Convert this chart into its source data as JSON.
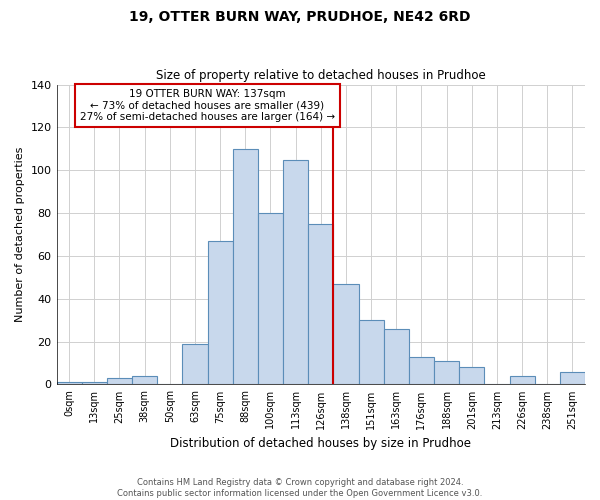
{
  "title": "19, OTTER BURN WAY, PRUDHOE, NE42 6RD",
  "subtitle": "Size of property relative to detached houses in Prudhoe",
  "xlabel": "Distribution of detached houses by size in Prudhoe",
  "ylabel": "Number of detached properties",
  "bin_labels": [
    "0sqm",
    "13sqm",
    "25sqm",
    "38sqm",
    "50sqm",
    "63sqm",
    "75sqm",
    "88sqm",
    "100sqm",
    "113sqm",
    "126sqm",
    "138sqm",
    "151sqm",
    "163sqm",
    "176sqm",
    "188sqm",
    "201sqm",
    "213sqm",
    "226sqm",
    "238sqm",
    "251sqm"
  ],
  "bar_values": [
    1,
    1,
    3,
    4,
    0,
    19,
    67,
    110,
    80,
    105,
    75,
    47,
    30,
    26,
    13,
    11,
    8,
    0,
    4,
    0,
    6
  ],
  "bar_color": "#c8d8ec",
  "bar_edge_color": "#5b8db8",
  "property_line_x": 11,
  "property_line_label": "19 OTTER BURN WAY: 137sqm",
  "annotation_line1": "← 73% of detached houses are smaller (439)",
  "annotation_line2": "27% of semi-detached houses are larger (164) →",
  "annotation_box_color": "#ffffff",
  "annotation_box_edge": "#cc0000",
  "vline_color": "#cc0000",
  "ylim": [
    0,
    140
  ],
  "yticks": [
    0,
    20,
    40,
    60,
    80,
    100,
    120,
    140
  ],
  "footnote1": "Contains HM Land Registry data © Crown copyright and database right 2024.",
  "footnote2": "Contains public sector information licensed under the Open Government Licence v3.0.",
  "bg_color": "#ffffff",
  "grid_color": "#d0d0d0"
}
